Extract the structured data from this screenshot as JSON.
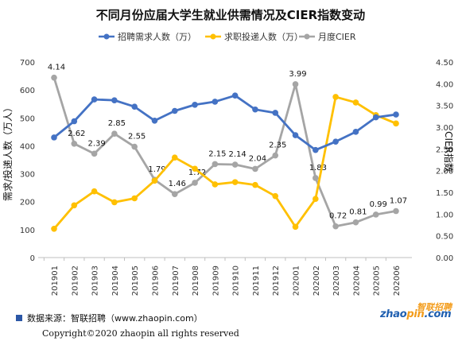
{
  "chart_data": {
    "type": "line",
    "title": "不同月份应届大学生就业供需情况及CIER指数变动",
    "categories": [
      "201901",
      "201902",
      "201903",
      "201904",
      "201905",
      "201906",
      "201907",
      "201908",
      "201909",
      "201910",
      "201911",
      "201912",
      "202001",
      "202002",
      "202003",
      "202004",
      "202005",
      "202006"
    ],
    "series": [
      {
        "name": "招聘需求人数（万）",
        "axis": "left",
        "color": "#4472c4",
        "values": [
          430,
          488,
          566,
          563,
          540,
          490,
          525,
          547,
          558,
          580,
          530,
          518,
          438,
          385,
          415,
          450,
          502,
          512
        ]
      },
      {
        "name": "求职投递人数（万）",
        "axis": "left",
        "color": "#ffc000",
        "values": [
          103,
          187,
          237,
          198,
          212,
          275,
          358,
          318,
          262,
          270,
          260,
          220,
          110,
          210,
          575,
          555,
          510,
          480
        ]
      },
      {
        "name": "月度CIER",
        "axis": "right",
        "color": "#a5a5a5",
        "values": [
          4.14,
          2.62,
          2.39,
          2.85,
          2.55,
          1.79,
          1.46,
          1.72,
          2.15,
          2.14,
          2.04,
          2.35,
          3.99,
          1.83,
          0.72,
          0.81,
          0.99,
          1.07
        ],
        "labels": [
          "4.14",
          "2.62",
          "2.39",
          "2.85",
          "2.55",
          "1.79",
          "1.46",
          "1.72",
          "2.15",
          "2.14",
          "2.04",
          "2.35",
          "3.99",
          "1.83",
          "0.72",
          "0.81",
          "0.99",
          "1.07"
        ]
      }
    ],
    "left_axis": {
      "label": "需求/投递人数（万人）",
      "min": 0,
      "max": 700,
      "ticks": [
        "0",
        "100",
        "200",
        "300",
        "400",
        "500",
        "600",
        "700"
      ]
    },
    "right_axis": {
      "label": "CIER指数",
      "min": 0,
      "max": 4.5,
      "ticks": [
        "0.00",
        "0.50",
        "1.00",
        "1.50",
        "2.00",
        "2.50",
        "3.00",
        "3.50",
        "4.00",
        "4.50"
      ]
    },
    "grid": false,
    "legend_position": "top"
  },
  "footer": {
    "source": "数据来源：智联招聘（www.zhaopin.com）",
    "copyright": "Copyright©2020 zhaopin all rights reserved",
    "logo_cn": "智联招聘",
    "logo_en_a": "zhao",
    "logo_en_b": "pin",
    "logo_en_c": ".com"
  }
}
